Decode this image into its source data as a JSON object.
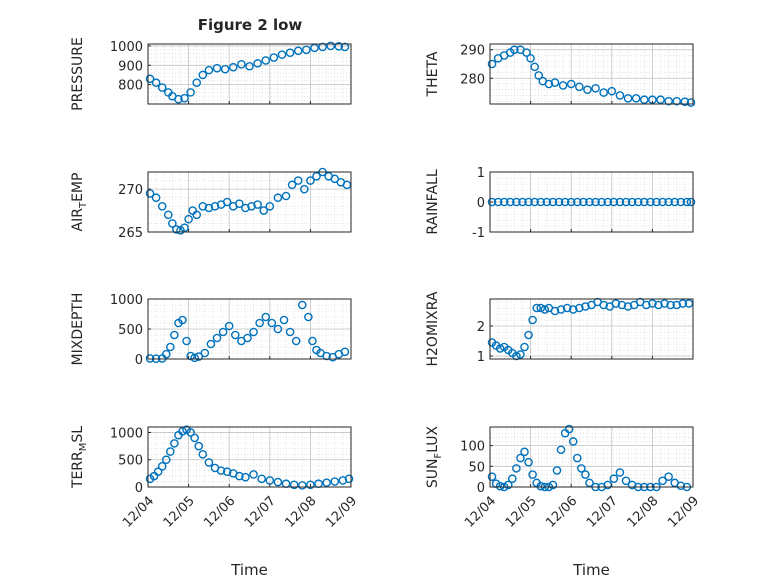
{
  "figure": {
    "title": "Figure 2 low",
    "marker_color": "#0072bd"
  },
  "chart_data": [
    {
      "type": "scatter",
      "ylabel": "PRESSURE",
      "ylim": [
        700,
        1010
      ],
      "yticks": [
        800,
        900,
        1000
      ],
      "ytick_labels": [
        "800",
        "900",
        "1000"
      ],
      "xlim": [
        0,
        5
      ],
      "grid": true,
      "x": [
        0.05,
        0.2,
        0.35,
        0.5,
        0.6,
        0.75,
        0.9,
        1.05,
        1.2,
        1.35,
        1.5,
        1.7,
        1.9,
        2.1,
        2.3,
        2.5,
        2.7,
        2.9,
        3.1,
        3.3,
        3.5,
        3.7,
        3.9,
        4.1,
        4.3,
        4.5,
        4.7,
        4.85
      ],
      "y": [
        830,
        810,
        785,
        760,
        740,
        725,
        730,
        760,
        810,
        850,
        875,
        885,
        880,
        890,
        905,
        895,
        910,
        925,
        940,
        955,
        965,
        975,
        980,
        990,
        995,
        1000,
        998,
        995
      ]
    },
    {
      "type": "scatter",
      "ylabel": "THETA",
      "ylim": [
        271,
        292
      ],
      "yticks": [
        280,
        290
      ],
      "ytick_labels": [
        "280",
        "290"
      ],
      "xlim": [
        0,
        5
      ],
      "grid": true,
      "x": [
        0.05,
        0.2,
        0.35,
        0.5,
        0.6,
        0.75,
        0.9,
        1.0,
        1.1,
        1.2,
        1.3,
        1.45,
        1.6,
        1.8,
        2.0,
        2.2,
        2.4,
        2.6,
        2.8,
        3.0,
        3.2,
        3.4,
        3.6,
        3.8,
        4.0,
        4.2,
        4.4,
        4.6,
        4.8,
        4.95
      ],
      "y": [
        285,
        287,
        288,
        289,
        290,
        290,
        289,
        287,
        284,
        281,
        279,
        278,
        278.5,
        277.5,
        278,
        277,
        276,
        276.5,
        275,
        275.5,
        274,
        273,
        273,
        272.5,
        272.5,
        272.5,
        272,
        272,
        271.8,
        271.5
      ]
    },
    {
      "type": "scatter",
      "ylabel": "AIR_TEMP",
      "ylim": [
        265,
        272
      ],
      "yticks": [
        265,
        270
      ],
      "ytick_labels": [
        "265",
        "270"
      ],
      "xlim": [
        0,
        5
      ],
      "grid": true,
      "x": [
        0.05,
        0.2,
        0.35,
        0.5,
        0.6,
        0.7,
        0.8,
        0.9,
        1.0,
        1.1,
        1.2,
        1.35,
        1.5,
        1.65,
        1.8,
        1.95,
        2.1,
        2.25,
        2.4,
        2.55,
        2.7,
        2.85,
        3.0,
        3.2,
        3.4,
        3.55,
        3.7,
        3.85,
        4.0,
        4.15,
        4.3,
        4.45,
        4.6,
        4.75,
        4.9
      ],
      "y": [
        269.5,
        269,
        268,
        267,
        266,
        265.3,
        265.2,
        265.5,
        266.5,
        267.5,
        267,
        268,
        267.8,
        268,
        268.2,
        268.5,
        268,
        268.3,
        267.8,
        268,
        268.2,
        267.5,
        268,
        269,
        269.2,
        270.5,
        271,
        270,
        271,
        271.5,
        272,
        271.5,
        271.2,
        270.8,
        270.5
      ]
    },
    {
      "type": "scatter",
      "ylabel": "RAINFALL",
      "ylim": [
        -1,
        1
      ],
      "yticks": [
        -1,
        0,
        1
      ],
      "ytick_labels": [
        "-1",
        "0",
        "1"
      ],
      "xlim": [
        0,
        5
      ],
      "grid": true,
      "x": [
        0.05,
        0.2,
        0.35,
        0.5,
        0.65,
        0.8,
        0.95,
        1.1,
        1.25,
        1.4,
        1.55,
        1.7,
        1.85,
        2.0,
        2.15,
        2.3,
        2.45,
        2.6,
        2.75,
        2.9,
        3.05,
        3.2,
        3.35,
        3.5,
        3.65,
        3.8,
        3.95,
        4.1,
        4.25,
        4.4,
        4.55,
        4.7,
        4.85,
        4.95
      ],
      "y": [
        0,
        0,
        0,
        0,
        0,
        0,
        0,
        0,
        0,
        0,
        0,
        0,
        0,
        0,
        0,
        0,
        0,
        0,
        0,
        0,
        0,
        0,
        0,
        0,
        0,
        0,
        0,
        0,
        0,
        0,
        0,
        0,
        0,
        0
      ]
    },
    {
      "type": "scatter",
      "ylabel": "MIXDEPTH",
      "ylim": [
        0,
        1000
      ],
      "yticks": [
        0,
        500,
        1000
      ],
      "ytick_labels": [
        "0",
        "500",
        "1000"
      ],
      "xlim": [
        0,
        5
      ],
      "grid": true,
      "x": [
        0.05,
        0.2,
        0.35,
        0.45,
        0.55,
        0.65,
        0.75,
        0.85,
        0.95,
        1.05,
        1.15,
        1.25,
        1.4,
        1.55,
        1.7,
        1.85,
        2.0,
        2.15,
        2.3,
        2.45,
        2.6,
        2.75,
        2.9,
        3.05,
        3.2,
        3.35,
        3.5,
        3.65,
        3.8,
        3.95,
        4.05,
        4.15,
        4.25,
        4.4,
        4.55,
        4.7,
        4.85
      ],
      "y": [
        10,
        5,
        10,
        80,
        200,
        400,
        600,
        650,
        300,
        50,
        20,
        40,
        100,
        250,
        350,
        450,
        550,
        400,
        300,
        350,
        450,
        600,
        700,
        600,
        500,
        650,
        450,
        300,
        900,
        700,
        300,
        150,
        100,
        50,
        30,
        80,
        120
      ]
    },
    {
      "type": "scatter",
      "ylabel": "H2OMIXRA",
      "ylim": [
        0.9,
        2.9
      ],
      "yticks": [
        1,
        2
      ],
      "ytick_labels": [
        "1",
        "2"
      ],
      "xlim": [
        0,
        5
      ],
      "grid": true,
      "x": [
        0.05,
        0.15,
        0.25,
        0.35,
        0.45,
        0.55,
        0.65,
        0.75,
        0.85,
        0.95,
        1.05,
        1.15,
        1.25,
        1.35,
        1.45,
        1.6,
        1.75,
        1.9,
        2.05,
        2.2,
        2.35,
        2.5,
        2.65,
        2.8,
        2.95,
        3.1,
        3.25,
        3.4,
        3.55,
        3.7,
        3.85,
        4.0,
        4.15,
        4.3,
        4.45,
        4.6,
        4.75,
        4.9
      ],
      "y": [
        1.45,
        1.35,
        1.25,
        1.3,
        1.2,
        1.1,
        1.0,
        1.05,
        1.3,
        1.7,
        2.2,
        2.6,
        2.6,
        2.55,
        2.6,
        2.5,
        2.55,
        2.6,
        2.55,
        2.6,
        2.65,
        2.7,
        2.8,
        2.7,
        2.65,
        2.75,
        2.7,
        2.65,
        2.7,
        2.8,
        2.7,
        2.75,
        2.7,
        2.75,
        2.7,
        2.7,
        2.75,
        2.75
      ]
    },
    {
      "type": "scatter",
      "ylabel": "TERR_MSL",
      "ylim": [
        0,
        1100
      ],
      "yticks": [
        0,
        500,
        1000
      ],
      "ytick_labels": [
        "0",
        "500",
        "1000"
      ],
      "xlim": [
        0,
        5
      ],
      "grid": true,
      "x": [
        0.05,
        0.15,
        0.25,
        0.35,
        0.45,
        0.55,
        0.65,
        0.75,
        0.85,
        0.95,
        1.05,
        1.15,
        1.25,
        1.35,
        1.5,
        1.65,
        1.8,
        1.95,
        2.1,
        2.25,
        2.4,
        2.6,
        2.8,
        3.0,
        3.2,
        3.4,
        3.6,
        3.8,
        4.0,
        4.2,
        4.4,
        4.6,
        4.8,
        4.95
      ],
      "y": [
        150,
        200,
        280,
        380,
        500,
        650,
        800,
        950,
        1020,
        1050,
        1000,
        900,
        750,
        600,
        450,
        350,
        300,
        280,
        250,
        200,
        180,
        230,
        150,
        120,
        90,
        60,
        40,
        30,
        40,
        60,
        80,
        100,
        120,
        150
      ]
    },
    {
      "type": "scatter",
      "ylabel": "SUN_FLUX",
      "ylim": [
        0,
        145
      ],
      "yticks": [
        0,
        50,
        100
      ],
      "ytick_labels": [
        "0",
        "50",
        "100"
      ],
      "xlim": [
        0,
        5
      ],
      "grid": true,
      "x": [
        0.05,
        0.15,
        0.25,
        0.35,
        0.45,
        0.55,
        0.65,
        0.75,
        0.85,
        0.95,
        1.05,
        1.15,
        1.25,
        1.35,
        1.45,
        1.55,
        1.65,
        1.75,
        1.85,
        1.95,
        2.05,
        2.15,
        2.25,
        2.35,
        2.45,
        2.6,
        2.75,
        2.9,
        3.05,
        3.2,
        3.35,
        3.5,
        3.65,
        3.8,
        3.95,
        4.1,
        4.25,
        4.4,
        4.55,
        4.7,
        4.85
      ],
      "y": [
        25,
        8,
        2,
        0,
        5,
        20,
        45,
        70,
        85,
        60,
        30,
        10,
        2,
        0,
        0,
        5,
        40,
        90,
        130,
        140,
        110,
        70,
        45,
        30,
        10,
        0,
        0,
        5,
        20,
        35,
        15,
        5,
        0,
        0,
        0,
        0,
        15,
        25,
        10,
        3,
        0
      ]
    }
  ],
  "xaxis": {
    "label": "Time",
    "ticks": [
      0,
      1,
      2,
      3,
      4,
      5
    ],
    "tick_labels": [
      "12/04",
      "12/05",
      "12/06",
      "12/07",
      "12/08",
      "12/09"
    ]
  }
}
